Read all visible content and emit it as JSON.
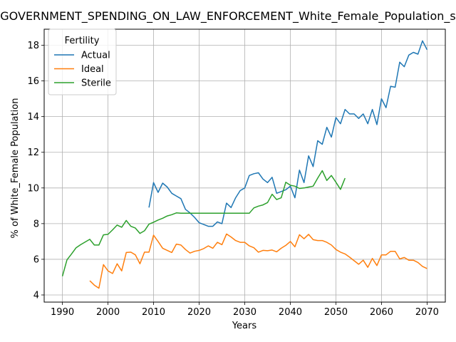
{
  "chart_data": {
    "type": "line",
    "title": "GOVERNMENT_SPENDING_ON_LAW_ENFORCEMENT_White_Female_Population_s",
    "xlabel": "Years",
    "ylabel": "% of White_Female Population",
    "xlim": [
      1986,
      2074
    ],
    "ylim": [
      3.6,
      18.9
    ],
    "xticks": [
      1990,
      2000,
      2010,
      2020,
      2030,
      2040,
      2050,
      2060,
      2070
    ],
    "yticks": [
      4,
      6,
      8,
      10,
      12,
      14,
      16,
      18
    ],
    "grid": true,
    "legend": {
      "title": "Fertility",
      "placement": "upper-left"
    },
    "series": [
      {
        "name": "Actual",
        "color": "#1f77b4",
        "x": [
          2009,
          2010,
          2011,
          2012,
          2013,
          2014,
          2015,
          2016,
          2017,
          2018,
          2019,
          2020,
          2021,
          2022,
          2023,
          2024,
          2025,
          2026,
          2027,
          2028,
          2029,
          2030,
          2031,
          2032,
          2033,
          2034,
          2035,
          2036,
          2037,
          2038,
          2039,
          2040,
          2041,
          2042,
          2043,
          2044,
          2045,
          2046,
          2047,
          2048,
          2049,
          2050,
          2051,
          2052,
          2053,
          2054,
          2055,
          2056,
          2057,
          2058,
          2059,
          2060,
          2061,
          2062,
          2063,
          2064,
          2065,
          2066,
          2067,
          2068,
          2069,
          2070
        ],
        "values": [
          8.9,
          10.3,
          9.75,
          10.27,
          10.05,
          9.7,
          9.55,
          9.4,
          8.8,
          8.6,
          8.35,
          8.05,
          7.95,
          7.85,
          7.85,
          8.1,
          8.0,
          9.15,
          8.9,
          9.45,
          9.85,
          10.0,
          10.7,
          10.8,
          10.85,
          10.5,
          10.3,
          10.6,
          9.7,
          9.8,
          9.9,
          10.1,
          9.45,
          11.0,
          10.3,
          11.8,
          11.2,
          12.65,
          12.45,
          13.4,
          12.85,
          13.95,
          13.6,
          14.4,
          14.15,
          14.15,
          13.9,
          14.15,
          13.6,
          14.4,
          13.55,
          15.0,
          14.5,
          15.7,
          15.65,
          17.05,
          16.8,
          17.45,
          17.6,
          17.5,
          18.25,
          17.75
        ]
      },
      {
        "name": "Ideal",
        "color": "#ff7f0e",
        "x": [
          1996,
          1997,
          1998,
          1999,
          2000,
          2001,
          2002,
          2003,
          2004,
          2005,
          2006,
          2007,
          2008,
          2009,
          2010,
          2011,
          2012,
          2013,
          2014,
          2015,
          2016,
          2017,
          2018,
          2019,
          2020,
          2021,
          2022,
          2023,
          2024,
          2025,
          2026,
          2027,
          2028,
          2029,
          2030,
          2031,
          2032,
          2033,
          2034,
          2035,
          2036,
          2037,
          2038,
          2039,
          2040,
          2041,
          2042,
          2043,
          2044,
          2045,
          2046,
          2047,
          2048,
          2049,
          2050,
          2051,
          2052,
          2053,
          2054,
          2055,
          2056,
          2057,
          2058,
          2059,
          2060,
          2061,
          2062,
          2063,
          2064,
          2065,
          2066,
          2067,
          2068,
          2069,
          2070
        ],
        "values": [
          4.8,
          4.55,
          4.38,
          5.7,
          5.35,
          5.2,
          5.75,
          5.35,
          6.38,
          6.4,
          6.25,
          5.75,
          6.4,
          6.4,
          7.35,
          7.0,
          6.62,
          6.5,
          6.38,
          6.85,
          6.8,
          6.55,
          6.35,
          6.45,
          6.5,
          6.6,
          6.75,
          6.62,
          6.95,
          6.82,
          7.42,
          7.25,
          7.05,
          6.95,
          6.95,
          6.75,
          6.65,
          6.4,
          6.5,
          6.48,
          6.52,
          6.42,
          6.62,
          6.78,
          7.0,
          6.7,
          7.38,
          7.15,
          7.4,
          7.1,
          7.05,
          7.05,
          6.95,
          6.8,
          6.55,
          6.4,
          6.3,
          6.12,
          5.92,
          5.72,
          5.95,
          5.55,
          6.05,
          5.65,
          6.25,
          6.25,
          6.45,
          6.45,
          6.02,
          6.1,
          5.95,
          5.95,
          5.82,
          5.6,
          5.48
        ]
      },
      {
        "name": "Sterile",
        "color": "#2ca02c",
        "x": [
          1990,
          1991,
          1992,
          1993,
          1994,
          1995,
          1996,
          1997,
          1998,
          1999,
          2000,
          2001,
          2002,
          2003,
          2004,
          2005,
          2006,
          2007,
          2008,
          2009,
          2010,
          2011,
          2012,
          2013,
          2014,
          2015,
          2016,
          2017,
          2018,
          2019,
          2020,
          2021,
          2022,
          2023,
          2024,
          2025,
          2026,
          2027,
          2028,
          2029,
          2030,
          2031,
          2032,
          2033,
          2034,
          2035,
          2036,
          2037,
          2038,
          2039,
          2040,
          2041,
          2042,
          2043,
          2044,
          2045,
          2046,
          2047,
          2048,
          2049,
          2050,
          2051,
          2052
        ],
        "values": [
          5.05,
          5.97,
          6.3,
          6.65,
          6.82,
          6.97,
          7.12,
          6.8,
          6.8,
          7.37,
          7.4,
          7.65,
          7.92,
          7.8,
          8.18,
          7.85,
          7.75,
          7.45,
          7.6,
          7.97,
          8.08,
          8.2,
          8.3,
          8.43,
          8.5,
          8.6,
          8.58,
          8.58,
          8.58,
          8.58,
          8.58,
          8.58,
          8.58,
          8.58,
          8.58,
          8.58,
          8.58,
          8.58,
          8.58,
          8.58,
          8.58,
          8.58,
          8.88,
          8.98,
          9.05,
          9.18,
          9.65,
          9.35,
          9.45,
          10.32,
          10.15,
          10.1,
          9.97,
          10.0,
          10.05,
          10.1,
          10.55,
          10.97,
          10.42,
          10.7,
          10.32,
          9.92,
          10.55
        ]
      }
    ]
  }
}
